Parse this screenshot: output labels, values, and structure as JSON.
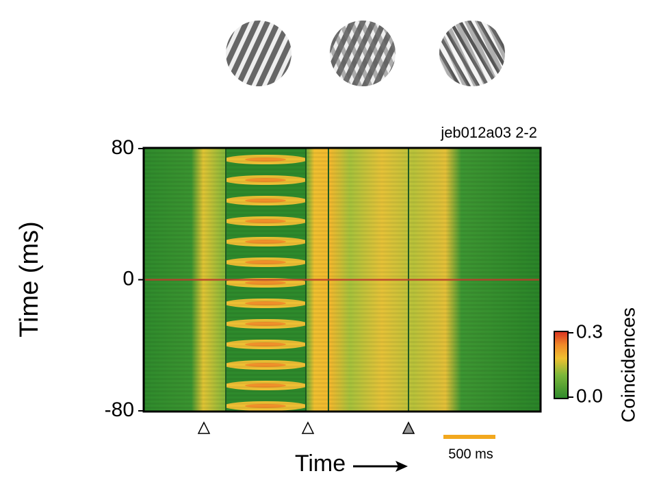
{
  "chart_data": {
    "type": "heatmap",
    "label": "jeb012a03 2-2",
    "ylabel": "Time (ms)",
    "xlabel": "Time",
    "ylim": [
      -80,
      80
    ],
    "yticks": [
      -80,
      0,
      80
    ],
    "colorbar": {
      "title": "Coincidences",
      "lim": [
        0,
        0.3
      ],
      "ticks": [
        {
          "value": 0,
          "label": "0.0"
        },
        {
          "value": 0.3,
          "label": "0.3"
        }
      ]
    },
    "scalebar": "500 ms"
  }
}
